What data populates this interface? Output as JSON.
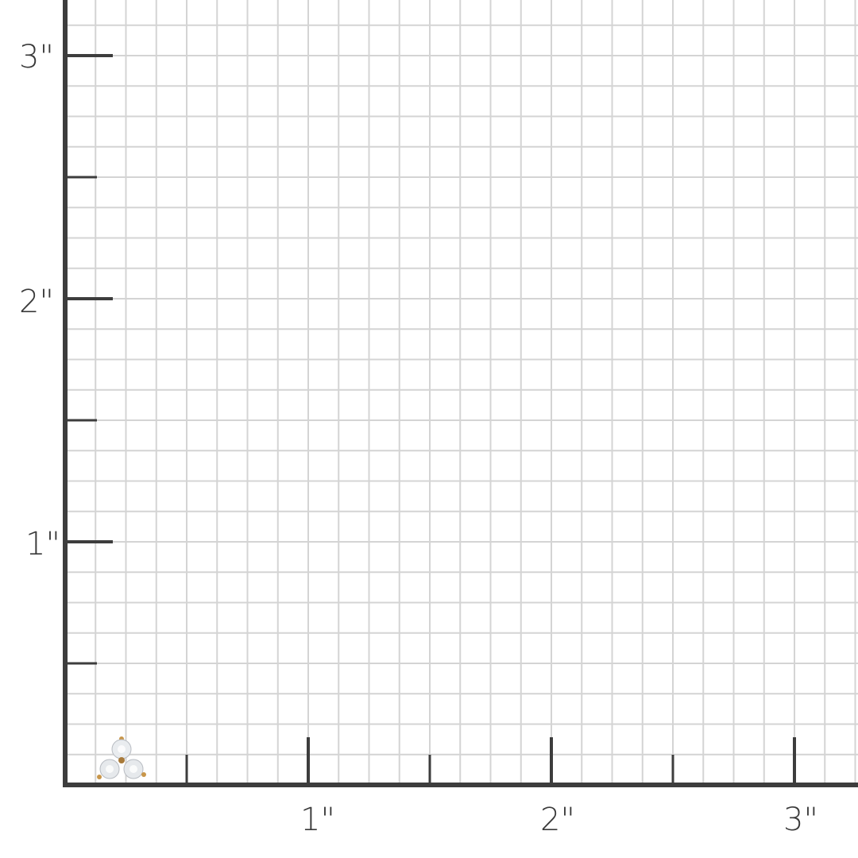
{
  "ruler": {
    "unit_mark": "\"",
    "y_labels": [
      "1\"",
      "2\"",
      "3\""
    ],
    "x_labels": [
      "1\"",
      "2\"",
      "3\""
    ],
    "grid_subdivisions_per_inch": 8,
    "colors": {
      "axis": "#3d3d3d",
      "grid": "#d4d4d4",
      "background": "#ffffff",
      "gold": "#c8964a"
    }
  },
  "product": {
    "icon": "three-stone-diamond-stud-earring"
  }
}
